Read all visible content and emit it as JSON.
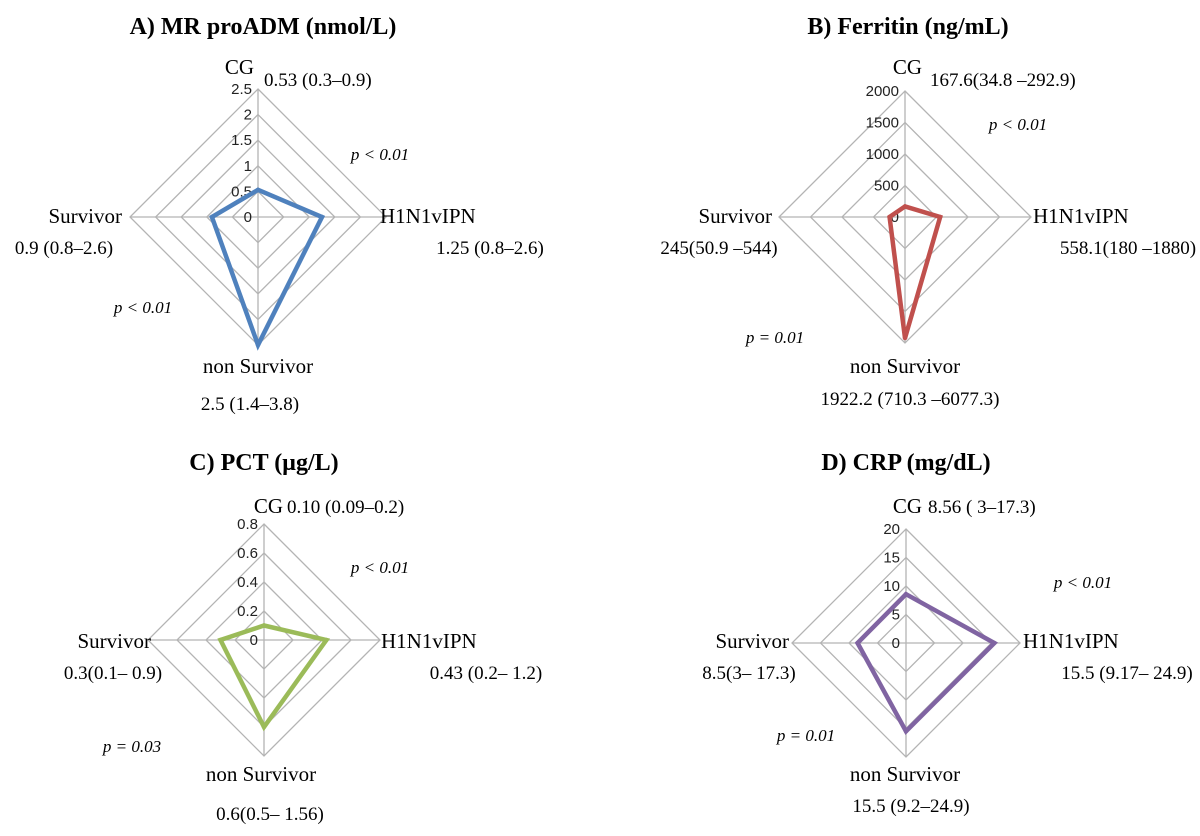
{
  "chart_data": [
    {
      "type": "radar",
      "title": "A) MR proADM (nmol/L)",
      "axes": [
        "CG",
        "H1N1vIPN",
        "non Survivor",
        "Survivor"
      ],
      "value_labels": [
        "0.53 (0.3–0.9)",
        "1.25 (0.8–2.6)",
        "2.5 (1.4–3.8)",
        "0.9 (0.8–2.6)"
      ],
      "values": [
        0.53,
        1.25,
        2.5,
        0.9
      ],
      "ticks": [
        0,
        0.5,
        1,
        1.5,
        2,
        2.5
      ],
      "tick_labels": [
        "0",
        "0.5",
        "1",
        "1.5",
        "2",
        "2.5"
      ],
      "range": [
        0,
        2.5
      ],
      "color": "#4f81bd",
      "p_values": [
        "p < 0.01",
        "p < 0.01"
      ]
    },
    {
      "type": "radar",
      "title": "B) Ferritin (ng/mL)",
      "axes": [
        "CG",
        "H1N1vIPN",
        "non Survivor",
        "Survivor"
      ],
      "value_labels": [
        "167.6(34.8 –292.9)",
        "558.1(180 –1880)",
        "1922.2 (710.3 –6077.3)",
        "245(50.9 –544)"
      ],
      "values": [
        167.6,
        558.1,
        1922.2,
        245
      ],
      "ticks": [
        0,
        500,
        1000,
        1500,
        2000
      ],
      "tick_labels": [
        "0",
        "500",
        "1000",
        "1500",
        "2000"
      ],
      "range": [
        0,
        2000
      ],
      "color": "#c0504d",
      "p_values": [
        "p < 0.01",
        "p = 0.01"
      ]
    },
    {
      "type": "radar",
      "title": "C) PCT (µg/L)",
      "axes": [
        "CG",
        "H1N1vIPN",
        "non Survivor",
        "Survivor"
      ],
      "value_labels": [
        "0.10 (0.09–0.2)",
        "0.43 (0.2– 1.2)",
        "0.6(0.5– 1.56)",
        "0.3(0.1– 0.9)"
      ],
      "values": [
        0.1,
        0.43,
        0.6,
        0.3
      ],
      "ticks": [
        0,
        0.2,
        0.4,
        0.6,
        0.8
      ],
      "tick_labels": [
        "0",
        "0.2",
        "0.4",
        "0.6",
        "0.8"
      ],
      "range": [
        0,
        0.8
      ],
      "color": "#9bbb59",
      "p_values": [
        "p < 0.01",
        "p = 0.03"
      ]
    },
    {
      "type": "radar",
      "title": "D) CRP (mg/dL)",
      "axes": [
        "CG",
        "H1N1vIPN",
        "non Survivor",
        "Survivor"
      ],
      "value_labels": [
        "8.56 ( 3–17.3)",
        "15.5 (9.17– 24.9)",
        "15.5  (9.2–24.9)",
        "8.5(3– 17.3)"
      ],
      "values": [
        8.56,
        15.5,
        15.5,
        8.5
      ],
      "ticks": [
        0,
        5,
        10,
        15,
        20
      ],
      "tick_labels": [
        "0",
        "5",
        "10",
        "15",
        "20"
      ],
      "range": [
        0,
        20
      ],
      "color": "#8064a2",
      "p_values": [
        "p < 0.01",
        "p = 0.01"
      ]
    }
  ]
}
